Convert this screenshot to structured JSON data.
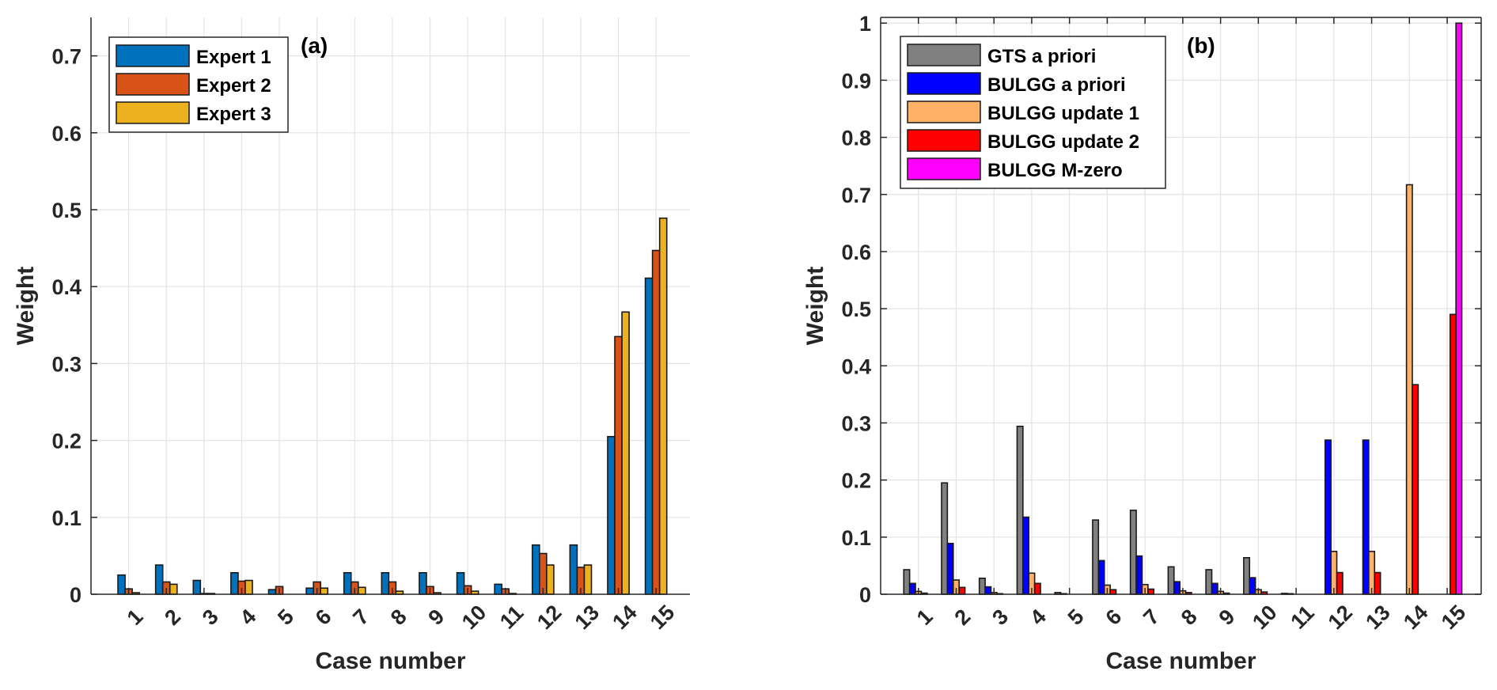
{
  "chart_data": [
    {
      "type": "bar",
      "panel_label": "(a)",
      "title": "",
      "xlabel": "Case number",
      "ylabel": "Weight",
      "ylim": [
        0,
        0.75
      ],
      "yticks": [
        "0",
        "0.1",
        "0.2",
        "0.3",
        "0.4",
        "0.5",
        "0.6",
        "0.7"
      ],
      "ytick_values": [
        0,
        0.1,
        0.2,
        0.3,
        0.4,
        0.5,
        0.6,
        0.7
      ],
      "categories": [
        "1",
        "2",
        "3",
        "4",
        "5",
        "6",
        "7",
        "8",
        "9",
        "10",
        "11",
        "12",
        "13",
        "14",
        "15"
      ],
      "grid": true,
      "box": false,
      "legend_position": "top-left",
      "series": [
        {
          "name": "Expert 1",
          "color": "#0072BD",
          "values": [
            0.025,
            0.038,
            0.018,
            0.028,
            0.006,
            0.008,
            0.028,
            0.028,
            0.028,
            0.028,
            0.013,
            0.064,
            0.064,
            0.205,
            0.411
          ]
        },
        {
          "name": "Expert 2",
          "color": "#D95319",
          "values": [
            0.007,
            0.016,
            0.001,
            0.017,
            0.01,
            0.016,
            0.016,
            0.016,
            0.01,
            0.011,
            0.007,
            0.053,
            0.035,
            0.335,
            0.447
          ]
        },
        {
          "name": "Expert 3",
          "color": "#EDB120",
          "values": [
            0.002,
            0.013,
            0.001,
            0.018,
            0.0,
            0.008,
            0.009,
            0.004,
            0.002,
            0.004,
            0.001,
            0.038,
            0.038,
            0.367,
            0.489
          ]
        }
      ]
    },
    {
      "type": "bar",
      "panel_label": "(b)",
      "title": "",
      "xlabel": "Case number",
      "ylabel": "Weight",
      "ylim": [
        0,
        1.01
      ],
      "yticks": [
        "0",
        "0.1",
        "0.2",
        "0.3",
        "0.4",
        "0.5",
        "0.6",
        "0.7",
        "0.8",
        "0.9",
        "1"
      ],
      "ytick_values": [
        0,
        0.1,
        0.2,
        0.3,
        0.4,
        0.5,
        0.6,
        0.7,
        0.8,
        0.9,
        1.0
      ],
      "categories": [
        "1",
        "2",
        "3",
        "4",
        "5",
        "6",
        "7",
        "8",
        "9",
        "10",
        "11",
        "12",
        "13",
        "14",
        "15"
      ],
      "grid": true,
      "box": true,
      "legend_position": "top-left",
      "series": [
        {
          "name": "GTS a priori",
          "color": "#808080",
          "values": [
            0.043,
            0.195,
            0.028,
            0.294,
            0.003,
            0.13,
            0.147,
            0.048,
            0.043,
            0.064,
            0.0015,
            0.0,
            0.0,
            0.0,
            0.0
          ]
        },
        {
          "name": "BULGG a priori",
          "color": "#0000FF",
          "values": [
            0.019,
            0.089,
            0.013,
            0.135,
            0.001,
            0.059,
            0.067,
            0.022,
            0.019,
            0.029,
            0.001,
            0.27,
            0.27,
            0.0,
            0.0
          ]
        },
        {
          "name": "BULGG update 1",
          "color": "#FFB266",
          "values": [
            0.005,
            0.025,
            0.003,
            0.037,
            0.0,
            0.016,
            0.017,
            0.006,
            0.005,
            0.008,
            0.0,
            0.075,
            0.075,
            0.717,
            0.0
          ]
        },
        {
          "name": "BULGG update 2",
          "color": "#FF0000",
          "values": [
            0.002,
            0.012,
            0.001,
            0.019,
            0.0,
            0.008,
            0.009,
            0.003,
            0.002,
            0.004,
            0.0,
            0.038,
            0.038,
            0.367,
            0.49
          ]
        },
        {
          "name": "BULGG M-zero",
          "color": "#FF00FF",
          "values": [
            0,
            0,
            0,
            0,
            0,
            0,
            0,
            0,
            0,
            0,
            0,
            0,
            0,
            0,
            1.0
          ]
        }
      ]
    }
  ]
}
